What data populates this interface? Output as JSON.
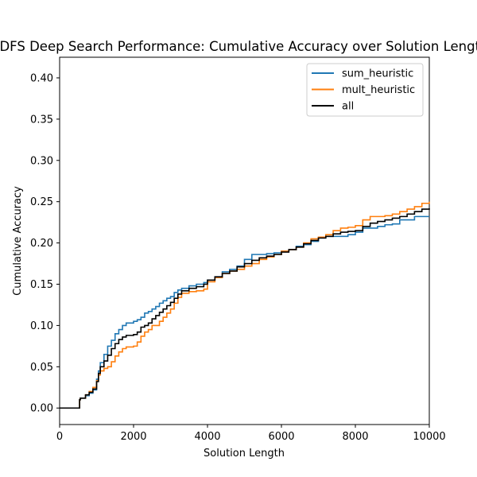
{
  "chart_data": {
    "type": "line",
    "title": "DFS Deep Search Performance: Cumulative Accuracy over Solution Length",
    "xlabel": "Solution Length",
    "ylabel": "Cumulative Accuracy",
    "xlim": [
      0,
      10000
    ],
    "ylim": [
      -0.02,
      0.425
    ],
    "xticks": [
      0,
      2000,
      4000,
      6000,
      8000,
      10000
    ],
    "xtick_labels": [
      "0",
      "2000",
      "4000",
      "6000",
      "8000",
      "10000"
    ],
    "yticks": [
      0.0,
      0.05,
      0.1,
      0.15,
      0.2,
      0.25,
      0.3,
      0.35,
      0.4
    ],
    "ytick_labels": [
      "0.00",
      "0.05",
      "0.10",
      "0.15",
      "0.20",
      "0.25",
      "0.30",
      "0.35",
      "0.40"
    ],
    "grid": false,
    "legend_position": "top-right",
    "series": [
      {
        "name": "sum_heuristic",
        "color": "#1f77b4",
        "x": [
          0,
          520,
          540,
          560,
          700,
          800,
          900,
          1000,
          1050,
          1100,
          1200,
          1300,
          1400,
          1500,
          1600,
          1700,
          1800,
          2000,
          2100,
          2200,
          2300,
          2400,
          2500,
          2600,
          2700,
          2800,
          2900,
          3000,
          3100,
          3200,
          3300,
          3500,
          3700,
          3900,
          4000,
          4200,
          4400,
          4600,
          4800,
          5000,
          5200,
          5400,
          5600,
          5800,
          6000,
          6200,
          6400,
          6600,
          6800,
          7000,
          7200,
          7400,
          7600,
          7800,
          8000,
          8200,
          8400,
          8600,
          8800,
          9000,
          9200,
          9400,
          9600,
          9800,
          10000
        ],
        "y": [
          0.0,
          0.0,
          0.01,
          0.012,
          0.015,
          0.018,
          0.022,
          0.035,
          0.045,
          0.055,
          0.065,
          0.075,
          0.082,
          0.09,
          0.095,
          0.1,
          0.103,
          0.105,
          0.107,
          0.11,
          0.115,
          0.117,
          0.12,
          0.123,
          0.127,
          0.13,
          0.133,
          0.135,
          0.14,
          0.143,
          0.145,
          0.148,
          0.15,
          0.152,
          0.155,
          0.158,
          0.165,
          0.168,
          0.172,
          0.18,
          0.186,
          0.186,
          0.187,
          0.188,
          0.19,
          0.192,
          0.196,
          0.198,
          0.202,
          0.206,
          0.208,
          0.208,
          0.208,
          0.21,
          0.213,
          0.218,
          0.218,
          0.22,
          0.222,
          0.223,
          0.228,
          0.228,
          0.232,
          0.232,
          0.232
        ]
      },
      {
        "name": "mult_heuristic",
        "color": "#ff7f0e",
        "x": [
          0,
          520,
          540,
          560,
          700,
          800,
          900,
          1000,
          1050,
          1100,
          1200,
          1300,
          1400,
          1500,
          1600,
          1700,
          1800,
          2000,
          2100,
          2200,
          2300,
          2400,
          2500,
          2600,
          2700,
          2800,
          2900,
          3000,
          3100,
          3200,
          3300,
          3500,
          3700,
          3900,
          4000,
          4200,
          4400,
          4600,
          4800,
          5000,
          5200,
          5400,
          5600,
          5800,
          6000,
          6200,
          6400,
          6600,
          6800,
          7000,
          7200,
          7400,
          7600,
          7800,
          8000,
          8200,
          8400,
          8600,
          8800,
          9000,
          9200,
          9400,
          9600,
          9800,
          10000
        ],
        "y": [
          0.0,
          0.0,
          0.01,
          0.012,
          0.016,
          0.02,
          0.025,
          0.033,
          0.04,
          0.045,
          0.048,
          0.05,
          0.056,
          0.063,
          0.068,
          0.072,
          0.074,
          0.075,
          0.08,
          0.087,
          0.092,
          0.095,
          0.1,
          0.1,
          0.105,
          0.11,
          0.115,
          0.12,
          0.127,
          0.134,
          0.139,
          0.141,
          0.142,
          0.144,
          0.153,
          0.158,
          0.163,
          0.166,
          0.168,
          0.172,
          0.175,
          0.18,
          0.183,
          0.186,
          0.19,
          0.192,
          0.195,
          0.2,
          0.205,
          0.207,
          0.21,
          0.215,
          0.218,
          0.219,
          0.221,
          0.228,
          0.232,
          0.232,
          0.233,
          0.235,
          0.238,
          0.241,
          0.244,
          0.248,
          0.25
        ]
      },
      {
        "name": "all",
        "color": "#000000",
        "x": [
          0,
          520,
          540,
          560,
          700,
          800,
          900,
          1000,
          1050,
          1100,
          1200,
          1300,
          1400,
          1500,
          1600,
          1700,
          1800,
          2000,
          2100,
          2200,
          2300,
          2400,
          2500,
          2600,
          2700,
          2800,
          2900,
          3000,
          3100,
          3200,
          3300,
          3500,
          3700,
          3900,
          4000,
          4200,
          4400,
          4600,
          4800,
          5000,
          5200,
          5400,
          5600,
          5800,
          6000,
          6200,
          6400,
          6600,
          6800,
          7000,
          7200,
          7400,
          7600,
          7800,
          8000,
          8200,
          8400,
          8600,
          8800,
          9000,
          9200,
          9400,
          9600,
          9800,
          10000
        ],
        "y": [
          0.0,
          0.0,
          0.01,
          0.012,
          0.016,
          0.019,
          0.023,
          0.032,
          0.042,
          0.05,
          0.057,
          0.064,
          0.072,
          0.078,
          0.083,
          0.086,
          0.088,
          0.089,
          0.092,
          0.098,
          0.1,
          0.103,
          0.108,
          0.112,
          0.116,
          0.12,
          0.124,
          0.128,
          0.133,
          0.138,
          0.142,
          0.145,
          0.147,
          0.15,
          0.155,
          0.159,
          0.163,
          0.166,
          0.171,
          0.175,
          0.179,
          0.182,
          0.184,
          0.186,
          0.189,
          0.192,
          0.195,
          0.199,
          0.203,
          0.206,
          0.208,
          0.211,
          0.213,
          0.214,
          0.215,
          0.22,
          0.224,
          0.226,
          0.228,
          0.23,
          0.232,
          0.235,
          0.238,
          0.241,
          0.242
        ]
      }
    ]
  }
}
